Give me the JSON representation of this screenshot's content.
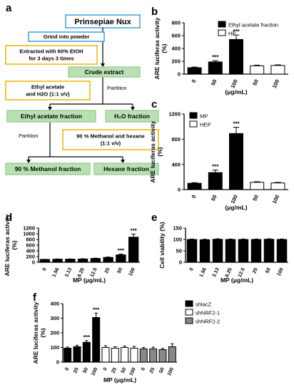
{
  "panel_letters": [
    "a",
    "b",
    "c",
    "d",
    "e",
    "f"
  ],
  "flowchart": {
    "title": "Prinsepiae Nux",
    "steps": [
      {
        "text": [
          "Grind into powder"
        ],
        "style": "blue"
      },
      {
        "text": [
          "Extracted with 60% EtOH",
          "for 3 days 3 times"
        ],
        "style": "yellow"
      },
      {
        "text": [
          "Crude extract"
        ],
        "style": "green"
      },
      {
        "text": [
          "Ethyl acetate",
          "and H2O (1:1 v/v)"
        ],
        "style": "yellow"
      },
      {
        "text": [
          "Ethyl acetate fraction"
        ],
        "style": "green"
      },
      {
        "text": [
          "H₂O fraction"
        ],
        "style": "green"
      },
      {
        "text": [
          "90 % Methanol and hexane",
          "(1:1 v/v)"
        ],
        "style": "yellow"
      },
      {
        "text": [
          "90 % Methanol fraction"
        ],
        "style": "green"
      },
      {
        "text": [
          "Hexane fraction"
        ],
        "style": "green"
      }
    ],
    "partition_labels": [
      "Partition",
      "Partition"
    ]
  },
  "chart_data": [
    {
      "panel": "b",
      "type": "bar",
      "categories": [
        "0",
        "50",
        "100",
        "50",
        "100"
      ],
      "values": [
        100,
        190,
        540,
        130,
        135
      ],
      "errors": [
        10,
        20,
        70,
        10,
        10
      ],
      "colors": [
        "#000000",
        "#000000",
        "#000000",
        "#ffffff",
        "#ffffff"
      ],
      "significance": [
        "",
        "***",
        "***",
        "",
        ""
      ],
      "ylabel": "ARE luciferas activity\n(%)",
      "xlabel": "(μg/mL)",
      "ylim": [
        0,
        800
      ],
      "yticks": [
        0,
        200,
        400,
        600,
        800
      ],
      "legend": [
        {
          "name": "Ethyl acetate fraction",
          "color": "#000000"
        },
        {
          "name": "HP",
          "color": "#ffffff"
        }
      ],
      "legend_position": "top-right"
    },
    {
      "panel": "c",
      "type": "bar",
      "categories": [
        "0",
        "50",
        "100",
        "50",
        "100"
      ],
      "values": [
        100,
        270,
        890,
        115,
        105
      ],
      "errors": [
        10,
        40,
        100,
        10,
        10
      ],
      "colors": [
        "#000000",
        "#000000",
        "#000000",
        "#ffffff",
        "#ffffff"
      ],
      "significance": [
        "",
        "***",
        "***",
        "",
        ""
      ],
      "ylabel": "ARE luciferas activity\n(%)",
      "xlabel": "(μg/mL)",
      "ylim": [
        0,
        1200
      ],
      "yticks": [
        0,
        400,
        800,
        1200
      ],
      "legend": [
        {
          "name": "MP",
          "color": "#000000"
        },
        {
          "name": "HEP",
          "color": "#ffffff"
        }
      ],
      "legend_position": "top-left"
    },
    {
      "panel": "d",
      "type": "bar",
      "categories": [
        "0",
        "1.56",
        "3.13",
        "6.25",
        "12.5",
        "25",
        "50",
        "100"
      ],
      "values": [
        100,
        108,
        110,
        115,
        135,
        170,
        260,
        880
      ],
      "errors": [
        5,
        8,
        8,
        10,
        10,
        15,
        30,
        110
      ],
      "colors": [
        "#000000",
        "#000000",
        "#000000",
        "#000000",
        "#000000",
        "#000000",
        "#000000",
        "#000000"
      ],
      "significance": [
        "",
        "",
        "",
        "",
        "",
        "",
        "***",
        "***"
      ],
      "ylabel": "ARE luciferas activity\n(%)",
      "xlabel": "MP (μg/mL)",
      "ylim": [
        0,
        1200
      ],
      "yticks": [
        0,
        200,
        400,
        600,
        800,
        1000,
        1200
      ]
    },
    {
      "panel": "e",
      "type": "bar",
      "categories": [
        "0",
        "1.56",
        "3.13",
        "6.25",
        "12.5",
        "25",
        "50",
        "100"
      ],
      "values": [
        100,
        99,
        101,
        100,
        100,
        100,
        101,
        100
      ],
      "errors": [
        2,
        2,
        2,
        2,
        2,
        2,
        2,
        2
      ],
      "colors": [
        "#000000",
        "#000000",
        "#000000",
        "#000000",
        "#000000",
        "#000000",
        "#000000",
        "#000000"
      ],
      "significance": [
        "",
        "",
        "",
        "",
        "",
        "",
        "",
        ""
      ],
      "ylabel": "Cell viability (%)",
      "xlabel": "MP (μg/mL)",
      "ylim": [
        0,
        150
      ],
      "yticks": [
        0,
        50,
        100,
        150
      ]
    },
    {
      "panel": "f",
      "type": "bar",
      "categories": [
        "0",
        "25",
        "50",
        "100",
        "0",
        "25",
        "50",
        "100",
        "0",
        "25",
        "50",
        "100"
      ],
      "values": [
        95,
        105,
        135,
        305,
        100,
        95,
        100,
        95,
        90,
        90,
        85,
        105
      ],
      "errors": [
        8,
        10,
        12,
        30,
        12,
        10,
        10,
        12,
        10,
        12,
        8,
        20
      ],
      "colors": [
        "#000000",
        "#000000",
        "#000000",
        "#000000",
        "#ffffff",
        "#ffffff",
        "#ffffff",
        "#ffffff",
        "#888888",
        "#888888",
        "#888888",
        "#888888"
      ],
      "significance": [
        "",
        "",
        "***",
        "***",
        "",
        "",
        "",
        "",
        "",
        "",
        "",
        ""
      ],
      "ylabel": "ARE luciferas activity\n(%)",
      "xlabel": "MP (μg/mL)",
      "ylim": [
        0,
        400
      ],
      "yticks": [
        0,
        100,
        200,
        300,
        400
      ],
      "legend": [
        {
          "name": "shlacZ",
          "color": "#000000"
        },
        {
          "name": "shNRF2-1",
          "color": "#ffffff"
        },
        {
          "name": "shNRF2-2",
          "color": "#888888"
        }
      ],
      "legend_position": "right"
    }
  ]
}
